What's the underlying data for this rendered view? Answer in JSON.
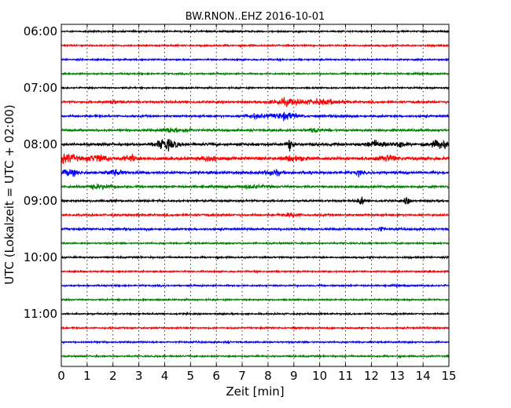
{
  "chart_data": {
    "type": "line",
    "title": "BW.RNON..EHZ 2016-10-01",
    "xlabel": "Zeit  [min]",
    "ylabel": "UTC (Lokalzeit = UTC + 02:00)",
    "xlim": [
      0,
      15
    ],
    "x_ticks": [
      "0",
      "1",
      "2",
      "3",
      "4",
      "5",
      "6",
      "7",
      "8",
      "9",
      "10",
      "11",
      "12",
      "13",
      "14",
      "15"
    ],
    "y_tick_labels": [
      "06:00",
      "07:00",
      "08:00",
      "09:00",
      "10:00",
      "11:00"
    ],
    "grid": "vertical dotted",
    "line_colors": [
      "#000000",
      "#ff0000",
      "#0000ff",
      "#008000"
    ],
    "traces": [
      {
        "start": "06:00",
        "color": "#000000",
        "base_amplitude": 0.15,
        "bursts": []
      },
      {
        "start": "06:15",
        "color": "#ff0000",
        "base_amplitude": 0.15,
        "bursts": []
      },
      {
        "start": "06:30",
        "color": "#0000ff",
        "base_amplitude": 0.15,
        "bursts": []
      },
      {
        "start": "06:45",
        "color": "#008000",
        "base_amplitude": 0.15,
        "bursts": []
      },
      {
        "start": "07:00",
        "color": "#000000",
        "base_amplitude": 0.15,
        "bursts": []
      },
      {
        "start": "07:15",
        "color": "#ff0000",
        "base_amplitude": 0.2,
        "bursts": [
          {
            "t": 8.7,
            "amp": 0.55,
            "dur": 0.6
          },
          {
            "t": 10.1,
            "amp": 0.45,
            "dur": 0.7
          },
          {
            "t": 2.0,
            "amp": 0.25,
            "dur": 0.3
          }
        ]
      },
      {
        "start": "07:30",
        "color": "#0000ff",
        "base_amplitude": 0.2,
        "bursts": [
          {
            "t": 7.5,
            "amp": 0.35,
            "dur": 0.5
          },
          {
            "t": 8.7,
            "amp": 0.6,
            "dur": 0.5
          },
          {
            "t": 10.9,
            "amp": 0.3,
            "dur": 0.3
          }
        ]
      },
      {
        "start": "07:45",
        "color": "#008000",
        "base_amplitude": 0.22,
        "bursts": [
          {
            "t": 4.2,
            "amp": 0.45,
            "dur": 0.3
          },
          {
            "t": 4.8,
            "amp": 0.4,
            "dur": 0.2
          },
          {
            "t": 9.8,
            "amp": 0.3,
            "dur": 0.3
          }
        ]
      },
      {
        "start": "08:00",
        "color": "#000000",
        "base_amplitude": 0.25,
        "bursts": [
          {
            "t": 4.05,
            "amp": 1.0,
            "dur": 0.4
          },
          {
            "t": 8.85,
            "amp": 1.3,
            "dur": 0.1
          },
          {
            "t": 12.2,
            "amp": 0.6,
            "dur": 0.4
          },
          {
            "t": 13.1,
            "amp": 0.6,
            "dur": 0.2
          },
          {
            "t": 14.7,
            "amp": 0.8,
            "dur": 0.4
          }
        ]
      },
      {
        "start": "08:15",
        "color": "#ff0000",
        "base_amplitude": 0.3,
        "bursts": [
          {
            "t": 0.2,
            "amp": 0.75,
            "dur": 0.4
          },
          {
            "t": 1.4,
            "amp": 0.6,
            "dur": 0.4
          },
          {
            "t": 2.7,
            "amp": 0.5,
            "dur": 0.3
          },
          {
            "t": 5.8,
            "amp": 0.55,
            "dur": 0.3
          },
          {
            "t": 9.0,
            "amp": 0.45,
            "dur": 0.4
          },
          {
            "t": 12.6,
            "amp": 0.55,
            "dur": 0.4
          }
        ]
      },
      {
        "start": "08:30",
        "color": "#0000ff",
        "base_amplitude": 0.25,
        "bursts": [
          {
            "t": 0.3,
            "amp": 0.5,
            "dur": 0.4
          },
          {
            "t": 2.1,
            "amp": 0.45,
            "dur": 0.3
          },
          {
            "t": 8.2,
            "amp": 0.5,
            "dur": 0.3
          },
          {
            "t": 11.5,
            "amp": 0.55,
            "dur": 0.1
          }
        ]
      },
      {
        "start": "08:45",
        "color": "#008000",
        "base_amplitude": 0.22,
        "bursts": [
          {
            "t": 1.5,
            "amp": 0.35,
            "dur": 0.5
          },
          {
            "t": 7.4,
            "amp": 0.3,
            "dur": 0.4
          }
        ]
      },
      {
        "start": "09:00",
        "color": "#000000",
        "base_amplitude": 0.2,
        "bursts": [
          {
            "t": 11.6,
            "amp": 0.9,
            "dur": 0.1
          },
          {
            "t": 13.4,
            "amp": 0.8,
            "dur": 0.1
          }
        ]
      },
      {
        "start": "09:15",
        "color": "#ff0000",
        "base_amplitude": 0.2,
        "bursts": [
          {
            "t": 8.9,
            "amp": 0.3,
            "dur": 0.3
          }
        ]
      },
      {
        "start": "09:30",
        "color": "#0000ff",
        "base_amplitude": 0.2,
        "bursts": [
          {
            "t": 12.4,
            "amp": 0.45,
            "dur": 0.1
          }
        ]
      },
      {
        "start": "09:45",
        "color": "#008000",
        "base_amplitude": 0.15,
        "bursts": []
      },
      {
        "start": "10:00",
        "color": "#000000",
        "base_amplitude": 0.15,
        "bursts": []
      },
      {
        "start": "10:15",
        "color": "#ff0000",
        "base_amplitude": 0.15,
        "bursts": []
      },
      {
        "start": "10:30",
        "color": "#0000ff",
        "base_amplitude": 0.15,
        "bursts": []
      },
      {
        "start": "10:45",
        "color": "#008000",
        "base_amplitude": 0.15,
        "bursts": []
      },
      {
        "start": "11:00",
        "color": "#000000",
        "base_amplitude": 0.15,
        "bursts": []
      },
      {
        "start": "11:15",
        "color": "#ff0000",
        "base_amplitude": 0.15,
        "bursts": []
      },
      {
        "start": "11:30",
        "color": "#0000ff",
        "base_amplitude": 0.15,
        "bursts": []
      },
      {
        "start": "11:45",
        "color": "#008000",
        "base_amplitude": 0.15,
        "bursts": []
      }
    ]
  }
}
